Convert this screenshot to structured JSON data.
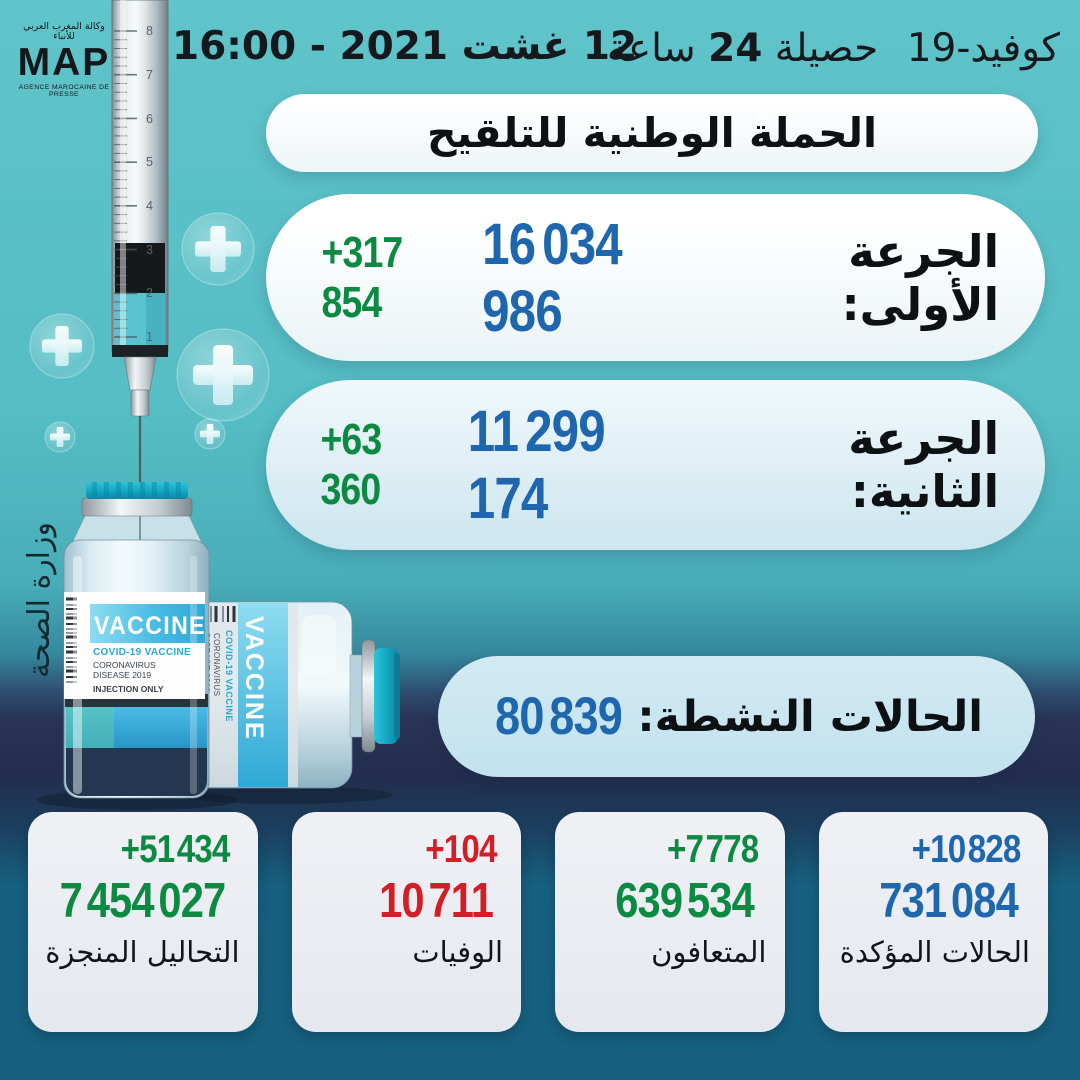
{
  "colors": {
    "blue": "#1e66ae",
    "green": "#0c8a42",
    "red": "#d21f26",
    "teal-bg": "#57bfc5",
    "navy-band": "#232d4c",
    "bottom-bg": "#17617d",
    "card-bg": "#e9ecf1"
  },
  "header": {
    "agency_name_ar": "وكالة المغرب العربي للأنباء",
    "agency_acronym": "MAP",
    "agency_tagline": "AGENCE MAROCAINE DE PRESSE",
    "datetime": "12 غشت 2021 - 16:00",
    "title_disease": "كوفيد-19",
    "title_label": "حصيلة",
    "title_hours": "24",
    "title_unit": "ساعة"
  },
  "campaign": {
    "banner": "الحملة الوطنية للتلقيح",
    "first_dose": {
      "label": "الجرعة الأولى:",
      "value": "16 034 986",
      "delta": "+317 854"
    },
    "second_dose": {
      "label": "الجرعة الثانية:",
      "value": "11 299 174",
      "delta": "+63 360"
    }
  },
  "active_cases": {
    "label": "الحالات النشطة:",
    "value": "80 839"
  },
  "stats_cards": [
    {
      "id": "confirmed-cases",
      "delta": "+10 828",
      "value": "731 084",
      "label": "الحالات المؤكدة",
      "color": "#1e66ae"
    },
    {
      "id": "recovered",
      "delta": "+7 778",
      "value": "639 534",
      "label": "المتعافون",
      "color": "#0c8a42"
    },
    {
      "id": "deaths",
      "delta": "+104",
      "value": "10 711",
      "label": "الوفيات",
      "color": "#d21f26"
    },
    {
      "id": "tests-performed",
      "delta": "+51 434",
      "value": "7 454 027",
      "label": "التحاليل المنجزة",
      "color": "#0c8a42"
    }
  ],
  "watermark": "وزارة الصحة",
  "illustration": {
    "vial_title": "VACCINE",
    "vial_subtitle": "COVID-19 VACCINE",
    "vial_line1": "CORONAVIRUS",
    "vial_line2": "DISEASE 2019",
    "vial_note": "INJECTION ONLY",
    "syringe_scale": [
      "1",
      "2",
      "3",
      "4",
      "5",
      "6",
      "7",
      "8"
    ]
  }
}
